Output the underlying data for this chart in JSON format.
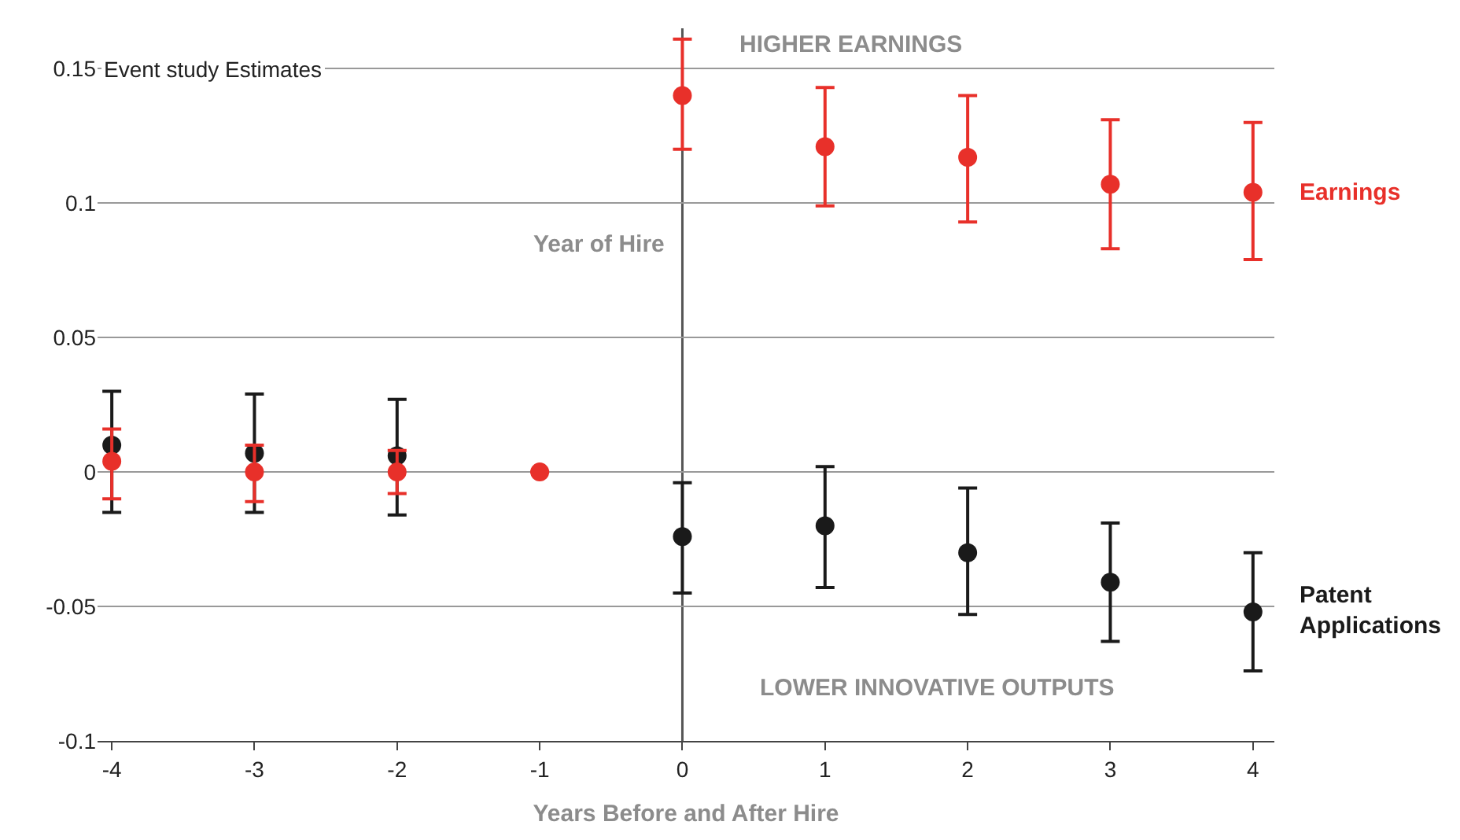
{
  "chart_data": {
    "type": "scatter",
    "xlabel": "Years Before and After Hire",
    "ylabel": "Event study Estimates",
    "x": [
      -4,
      -3,
      -2,
      -1,
      0,
      1,
      2,
      3,
      4
    ],
    "series": [
      {
        "name": "Patent Applications",
        "color": "#1a1a1a",
        "x": [
          -4,
          -3,
          -2,
          0,
          1,
          2,
          3,
          4
        ],
        "values": [
          0.01,
          0.007,
          0.006,
          -0.024,
          -0.02,
          -0.03,
          -0.041,
          -0.052
        ],
        "errors": [
          [
            -0.015,
            0.03
          ],
          [
            -0.015,
            0.029
          ],
          [
            -0.016,
            0.027
          ],
          [
            -0.045,
            -0.004
          ],
          [
            -0.043,
            0.002
          ],
          [
            -0.053,
            -0.006
          ],
          [
            -0.063,
            -0.019
          ],
          [
            -0.074,
            -0.03
          ]
        ]
      },
      {
        "name": "Earnings",
        "color": "#e8302a",
        "values": [
          0.004,
          0.0,
          0.0,
          0.0,
          0.14,
          0.121,
          0.117,
          0.107,
          0.104
        ],
        "errors": [
          [
            -0.01,
            0.016
          ],
          [
            -0.011,
            0.01
          ],
          [
            -0.008,
            0.008
          ],
          null,
          [
            0.12,
            0.161
          ],
          [
            0.099,
            0.143
          ],
          [
            0.093,
            0.14
          ],
          [
            0.083,
            0.131
          ],
          [
            0.079,
            0.13
          ]
        ]
      }
    ],
    "xlim": [
      -4.1,
      4.15
    ],
    "xticks": [
      -4,
      -3,
      -2,
      -1,
      0,
      1,
      2,
      3,
      4
    ],
    "ylim": [
      -0.1,
      0.165
    ],
    "yticks": [
      -0.1,
      -0.05,
      0,
      0.05,
      0.1,
      0.15
    ],
    "grid": "y",
    "legend": false,
    "marker": "circle",
    "ref_lines": [
      {
        "axis": "x",
        "value": 0,
        "label": "Year of Hire",
        "color": "#555555"
      }
    ],
    "annotations": [
      "HIGHER EARNINGS",
      "LOWER INNOVATIVE OUTPUTS"
    ]
  }
}
